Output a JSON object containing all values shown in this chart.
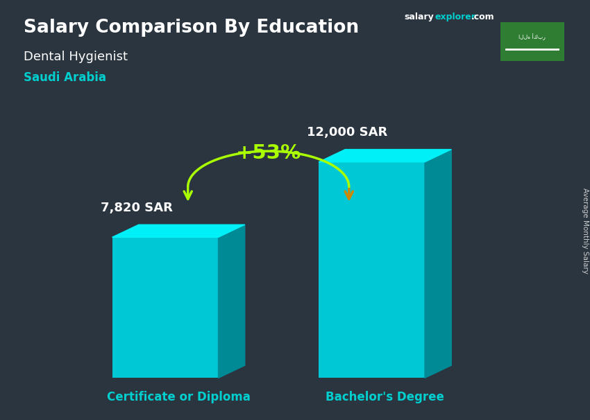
{
  "title_main": "Salary Comparison By Education",
  "title_salary": "salary",
  "title_explorer": "explorer",
  "title_com": ".com",
  "subtitle1": "Dental Hygienist",
  "subtitle2": "Saudi Arabia",
  "categories": [
    "Certificate or Diploma",
    "Bachelor's Degree"
  ],
  "values": [
    7820,
    12000
  ],
  "value_labels": [
    "7,820 SAR",
    "12,000 SAR"
  ],
  "pct_change": "+53%",
  "bar_color_face": "#00c8d4",
  "bar_color_top": "#00f0f8",
  "bar_color_side": "#008a96",
  "bar_width": 0.18,
  "title_color": "#ffffff",
  "subtitle1_color": "#ffffff",
  "subtitle2_color": "#00cfcf",
  "label_color": "#ffffff",
  "category_color": "#00cfcf",
  "pct_color": "#aaff00",
  "arrow_color": "#aaff00",
  "arrow2_color": "#cc8800",
  "side_label_color": "#cccccc",
  "flag_bg_color": "#2e7d32",
  "bg_color": "#2a3540"
}
